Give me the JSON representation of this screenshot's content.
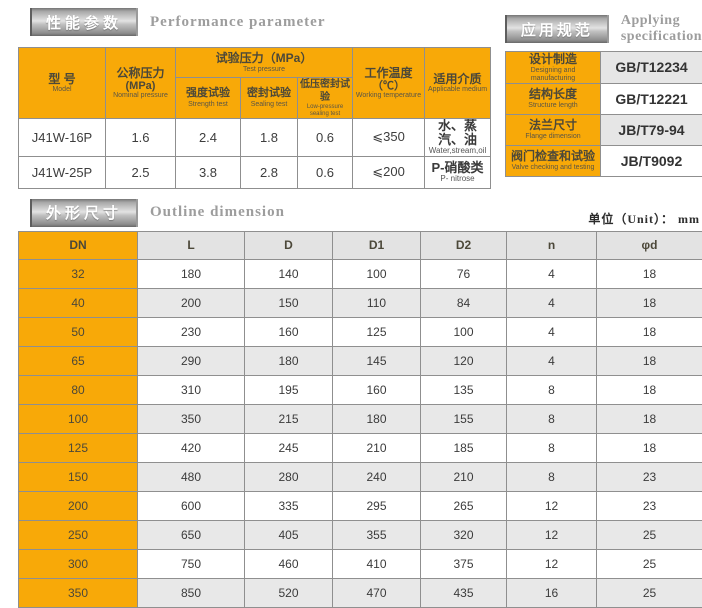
{
  "colors": {
    "accent_orange": "#F8A908",
    "alt_row_gray": "#e8e8e8",
    "table_border": "#8f8f8f",
    "badge_silver": "#c2c2c2",
    "title_gray": "#9d9d9d"
  },
  "performance": {
    "badge_cn": "性能参数",
    "title_en": "Performance parameter",
    "headers": {
      "model_cn": "型 号",
      "model_en": "Model",
      "nominal_cn": "公称压力",
      "nominal_unit": "(MPa)",
      "nominal_en": "Nominal pressure",
      "test_cn": "试验压力（MPa）",
      "test_en": "Test pressure",
      "strength_cn": "强度试验",
      "strength_en": "Strength test",
      "sealing_cn": "密封试验",
      "sealing_en": "Sealing test",
      "low_cn": "低压密封试验",
      "low_en": "Low-pressure sealing test",
      "temp_cn": "工作温度",
      "temp_unit": "（℃）",
      "temp_en": "Working temperature",
      "medium_cn": "适用介质",
      "medium_en": "Applicable medium"
    },
    "rows": [
      {
        "model": "J41W-16P",
        "nominal": "1.6",
        "strength": "2.4",
        "sealing": "1.8",
        "low": "0.6",
        "temp": "⩽350",
        "medium_cn": "水、蒸汽、油",
        "medium_en": "Water,stream,oil"
      },
      {
        "model": "J41W-25P",
        "nominal": "2.5",
        "strength": "3.8",
        "sealing": "2.8",
        "low": "0.6",
        "temp": "⩽200",
        "medium_cn": "P-硝酸类",
        "medium_en": "P- nitrose"
      }
    ]
  },
  "applying": {
    "badge_cn": "应用规范",
    "title_en1": "Applying",
    "title_en2": "specification",
    "rows": [
      {
        "label_cn": "设计制造",
        "label_en": "Designing and manufacturing",
        "value": "GB/T12234"
      },
      {
        "label_cn": "结构长度",
        "label_en": "Structure length",
        "value": "GB/T12221"
      },
      {
        "label_cn": "法兰尺寸",
        "label_en": "Flange dimension",
        "value": "JB/T79-94"
      },
      {
        "label_cn": "阀门检查和试验",
        "label_en": "Valve checking and testing",
        "value": "JB/T9092"
      }
    ]
  },
  "outline": {
    "badge_cn": "外形尺寸",
    "title_en": "Outline dimension",
    "unit_label": "单位（Unit）： mm",
    "columns": [
      "DN",
      "L",
      "D",
      "D1",
      "D2",
      "n",
      "φd"
    ],
    "rows": [
      [
        "32",
        "180",
        "140",
        "100",
        "76",
        "4",
        "18"
      ],
      [
        "40",
        "200",
        "150",
        "110",
        "84",
        "4",
        "18"
      ],
      [
        "50",
        "230",
        "160",
        "125",
        "100",
        "4",
        "18"
      ],
      [
        "65",
        "290",
        "180",
        "145",
        "120",
        "4",
        "18"
      ],
      [
        "80",
        "310",
        "195",
        "160",
        "135",
        "8",
        "18"
      ],
      [
        "100",
        "350",
        "215",
        "180",
        "155",
        "8",
        "18"
      ],
      [
        "125",
        "420",
        "245",
        "210",
        "185",
        "8",
        "18"
      ],
      [
        "150",
        "480",
        "280",
        "240",
        "210",
        "8",
        "23"
      ],
      [
        "200",
        "600",
        "335",
        "295",
        "265",
        "12",
        "23"
      ],
      [
        "250",
        "650",
        "405",
        "355",
        "320",
        "12",
        "25"
      ],
      [
        "300",
        "750",
        "460",
        "410",
        "375",
        "12",
        "25"
      ],
      [
        "350",
        "850",
        "520",
        "470",
        "435",
        "16",
        "25"
      ]
    ]
  }
}
